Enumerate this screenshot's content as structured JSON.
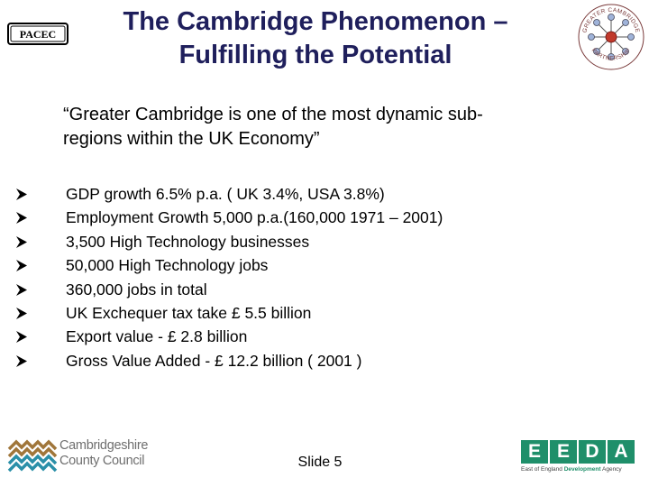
{
  "logos": {
    "pacec": "PACEC",
    "seal_top": "GREATER CAMBRIDGE",
    "seal_bottom": "PARTNERSHIP",
    "ccc_line1": "Cambridgeshire",
    "ccc_line2": "County Council",
    "eeda_letters": [
      "E",
      "E",
      "D",
      "A"
    ],
    "eeda_sub_left": "East of England",
    "eeda_sub_bold": "Development",
    "eeda_sub_right": "Agency"
  },
  "title": {
    "line1": "The Cambridge Phenomenon –",
    "line2": "Fulfilling the Potential"
  },
  "quote": {
    "line1": "“Greater Cambridge is one of the most dynamic sub-",
    "line2": "regions within the UK Economy”"
  },
  "bullets": [
    "GDP growth 6.5% p.a. ( UK 3.4%, USA 3.8%)",
    "Employment Growth 5,000 p.a.(160,000 1971 – 2001)",
    "3,500 High Technology businesses",
    "50,000 High Technology jobs",
    "360,000 jobs in total",
    "UK Exchequer tax take £ 5.5 billion",
    "Export value - £ 2.8 billion",
    "Gross Value Added - £ 12.2 billion ( 2001 )"
  ],
  "footer": {
    "slide_label": "Slide 5"
  },
  "colors": {
    "title": "#1f1f5c",
    "eeda_green": "#1f8f6a",
    "ccc_teal": "#2a8fa8",
    "ccc_brown": "#a0763a"
  }
}
